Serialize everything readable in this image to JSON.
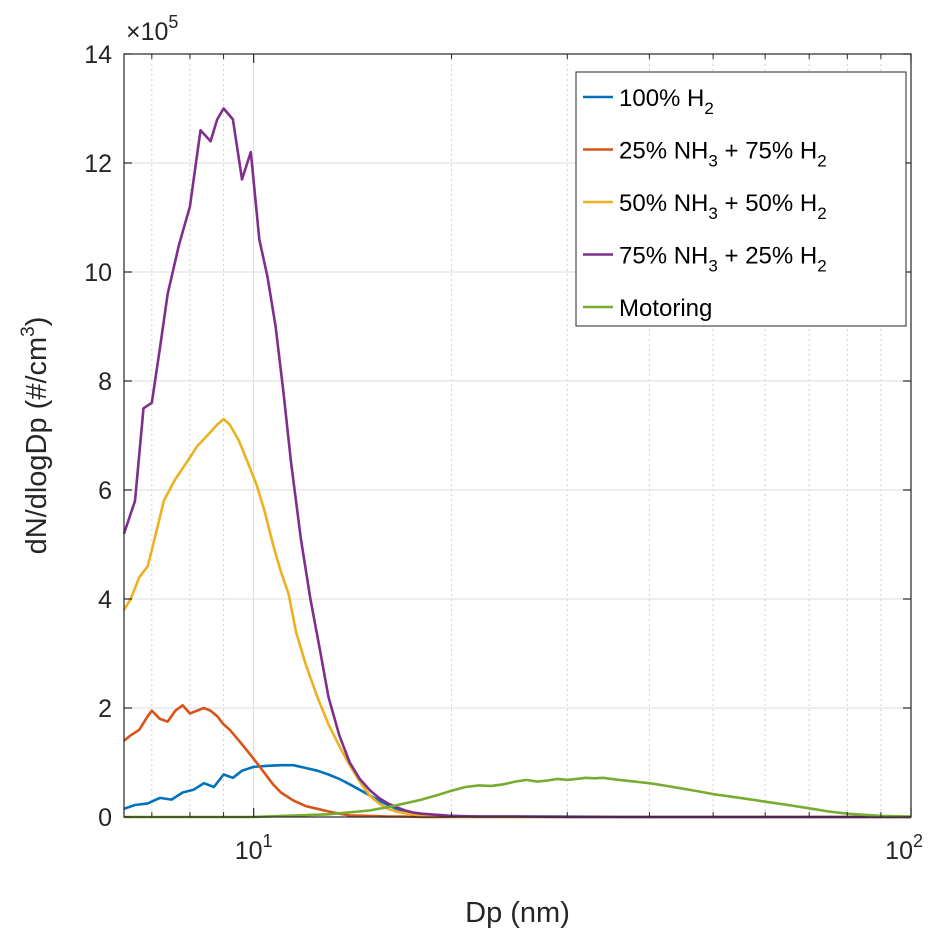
{
  "chart_data": {
    "type": "line",
    "xlabel": "Dp (nm)",
    "ylabel": "dN/dlogDp (#/cm3)",
    "ylabel_parts": {
      "main": "dN/dlogDp (#/cm",
      "sup": "3",
      "end": ")"
    },
    "x_scale": "log",
    "xlim": [
      6.35,
      100
    ],
    "ylim": [
      0,
      1400000
    ],
    "y_multiplier": {
      "base": "×10",
      "exp": "5"
    },
    "x_ticks": [
      {
        "value": 10,
        "base": "10",
        "exp": "1"
      },
      {
        "value": 100,
        "base": "10",
        "exp": "2"
      }
    ],
    "y_ticks": [
      {
        "value": 0,
        "label": "0"
      },
      {
        "value": 200000,
        "label": "2"
      },
      {
        "value": 400000,
        "label": "4"
      },
      {
        "value": 600000,
        "label": "6"
      },
      {
        "value": 800000,
        "label": "8"
      },
      {
        "value": 1000000,
        "label": "10"
      },
      {
        "value": 1200000,
        "label": "12"
      },
      {
        "value": 1400000,
        "label": "14"
      }
    ],
    "grid": true,
    "minor_grid": true,
    "legend_position": "top-right",
    "series": [
      {
        "name": "100% H2",
        "legend_parts": [
          [
            "100% H",
            ""
          ],
          [
            "2",
            "sub"
          ]
        ],
        "color": "#0072BD",
        "x": [
          6.35,
          6.6,
          6.9,
          7.2,
          7.5,
          7.8,
          8.1,
          8.4,
          8.7,
          9.0,
          9.3,
          9.6,
          10.0,
          10.5,
          11.0,
          11.5,
          12.0,
          12.5,
          13.0,
          13.5,
          14.0,
          14.5,
          15.0,
          15.5,
          16.0,
          16.5,
          17.0,
          18.0,
          19.0,
          20.0,
          22.0,
          25.0,
          30.0,
          40.0,
          50.0,
          60.0,
          80.0,
          100.0
        ],
        "y": [
          15000,
          22000,
          25000,
          35000,
          32000,
          45000,
          50000,
          62000,
          55000,
          78000,
          72000,
          85000,
          92000,
          94000,
          95000,
          95000,
          90000,
          85000,
          78000,
          70000,
          60000,
          50000,
          40000,
          30000,
          22000,
          15000,
          10000,
          5000,
          3000,
          2000,
          1000,
          1000,
          1000,
          0,
          0,
          0,
          0,
          0
        ]
      },
      {
        "name": "25% NH3 + 75% H2",
        "legend_parts": [
          [
            "25% NH",
            ""
          ],
          [
            "3",
            "sub"
          ],
          [
            " + 75% H",
            ""
          ],
          [
            "2",
            "sub"
          ]
        ],
        "color": "#D95319",
        "x": [
          6.35,
          6.5,
          6.7,
          6.9,
          7.0,
          7.2,
          7.4,
          7.6,
          7.8,
          8.0,
          8.2,
          8.4,
          8.6,
          8.8,
          9.0,
          9.2,
          9.5,
          9.8,
          10.1,
          10.4,
          10.7,
          11.0,
          11.5,
          12.0,
          12.5,
          13.0,
          13.5,
          14.0,
          15.0,
          16.0,
          17.0,
          18.0,
          20.0,
          25.0,
          30.0,
          40.0,
          60.0,
          100.0
        ],
        "y": [
          140000,
          150000,
          160000,
          185000,
          195000,
          180000,
          175000,
          195000,
          205000,
          190000,
          195000,
          200000,
          195000,
          185000,
          170000,
          160000,
          140000,
          120000,
          100000,
          80000,
          60000,
          45000,
          30000,
          20000,
          15000,
          10000,
          6000,
          3000,
          2000,
          1000,
          1000,
          0,
          0,
          0,
          0,
          0,
          0,
          0
        ]
      },
      {
        "name": "50% NH3 + 50% H2",
        "legend_parts": [
          [
            "50% NH",
            ""
          ],
          [
            "3",
            "sub"
          ],
          [
            " + 50% H",
            ""
          ],
          [
            "2",
            "sub"
          ]
        ],
        "color": "#EDB120",
        "x": [
          6.35,
          6.5,
          6.7,
          6.9,
          7.1,
          7.3,
          7.6,
          7.9,
          8.2,
          8.5,
          8.8,
          9.0,
          9.2,
          9.5,
          9.8,
          10.1,
          10.4,
          10.7,
          11.0,
          11.3,
          11.6,
          12.0,
          12.5,
          13.0,
          13.5,
          14.0,
          14.5,
          15.0,
          15.5,
          16.0,
          16.5,
          17.0,
          17.5,
          18.0,
          19.0,
          20.0,
          25.0,
          30.0,
          40.0,
          60.0,
          100.0
        ],
        "y": [
          380000,
          400000,
          440000,
          460000,
          520000,
          580000,
          620000,
          650000,
          680000,
          700000,
          720000,
          730000,
          720000,
          690000,
          650000,
          610000,
          560000,
          500000,
          450000,
          410000,
          340000,
          280000,
          220000,
          170000,
          130000,
          95000,
          65000,
          40000,
          25000,
          15000,
          10000,
          7000,
          5000,
          3000,
          2000,
          1000,
          0,
          0,
          0,
          0,
          0
        ]
      },
      {
        "name": "75% NH3 + 25% H2",
        "legend_parts": [
          [
            "75% NH",
            ""
          ],
          [
            "3",
            "sub"
          ],
          [
            " + 25% H",
            ""
          ],
          [
            "2",
            "sub"
          ]
        ],
        "color": "#7E2F8E",
        "x": [
          6.35,
          6.6,
          6.8,
          7.0,
          7.2,
          7.4,
          7.7,
          8.0,
          8.3,
          8.6,
          8.8,
          9.0,
          9.3,
          9.6,
          9.9,
          10.2,
          10.5,
          10.8,
          11.1,
          11.4,
          11.8,
          12.2,
          12.6,
          13.0,
          13.5,
          14.0,
          14.5,
          15.0,
          15.5,
          16.0,
          16.5,
          17.0,
          17.5,
          18.0,
          19.0,
          20.0,
          22.0,
          25.0,
          30.0,
          40.0,
          60.0,
          100.0
        ],
        "y": [
          520000,
          580000,
          750000,
          760000,
          860000,
          960000,
          1050000,
          1120000,
          1260000,
          1240000,
          1280000,
          1300000,
          1280000,
          1170000,
          1220000,
          1060000,
          990000,
          900000,
          780000,
          650000,
          510000,
          400000,
          310000,
          220000,
          150000,
          100000,
          70000,
          50000,
          35000,
          25000,
          18000,
          12000,
          8000,
          6000,
          4000,
          2000,
          1000,
          1000,
          0,
          0,
          0,
          0
        ]
      },
      {
        "name": "Motoring",
        "legend_parts": [
          [
            "Motoring",
            ""
          ]
        ],
        "color": "#77AC30",
        "x": [
          6.35,
          10.0,
          13.0,
          15.0,
          16.0,
          17.0,
          18.0,
          19.0,
          20.0,
          21.0,
          22.0,
          23.0,
          24.0,
          25.0,
          26.0,
          27.0,
          28.0,
          29.0,
          30.0,
          31.0,
          32.0,
          33.0,
          34.0,
          35.0,
          36.0,
          38.0,
          40.0,
          42.0,
          45.0,
          48.0,
          50.0,
          55.0,
          60.0,
          65.0,
          70.0,
          75.0,
          80.0,
          90.0,
          100.0
        ],
        "y": [
          0,
          0,
          5000,
          12000,
          18000,
          25000,
          32000,
          40000,
          48000,
          55000,
          58000,
          57000,
          60000,
          65000,
          68000,
          65000,
          67000,
          70000,
          68000,
          70000,
          72000,
          71000,
          72000,
          70000,
          68000,
          65000,
          62000,
          58000,
          52000,
          46000,
          42000,
          35000,
          28000,
          22000,
          16000,
          10000,
          6000,
          2000,
          1000
        ]
      }
    ]
  }
}
